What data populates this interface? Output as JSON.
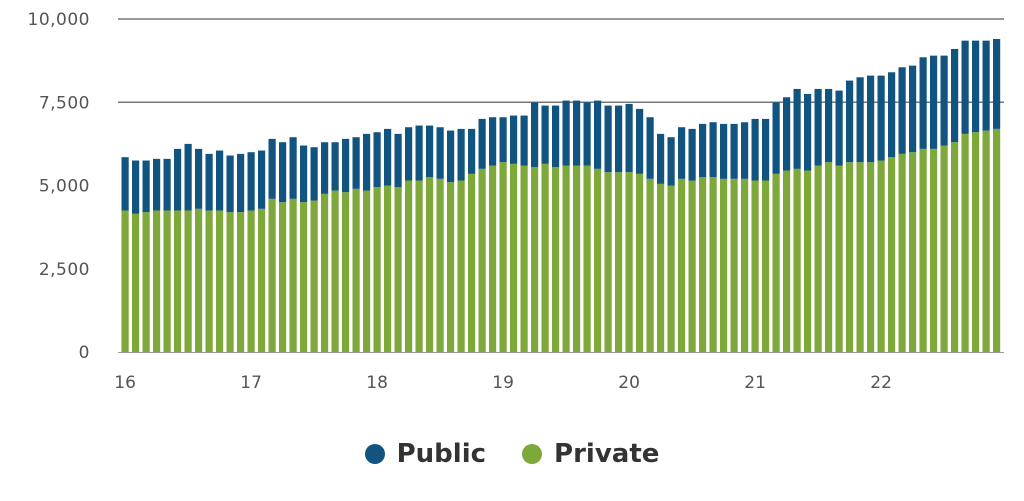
{
  "chart_data": {
    "type": "bar",
    "stacked": true,
    "title": "",
    "xlabel": "",
    "ylabel": "",
    "ylim": [
      0,
      10000
    ],
    "y_ticks": [
      "0",
      "2,500",
      "5,000",
      "7,500",
      "10,000"
    ],
    "y_tick_values": [
      0,
      2500,
      5000,
      7500,
      10000
    ],
    "x_tick_labels": [
      "16",
      "17",
      "18",
      "19",
      "20",
      "21",
      "22"
    ],
    "x_tick_positions": [
      0,
      12,
      24,
      36,
      48,
      60,
      72
    ],
    "grid": "horizontal at 7,500 and 10,000",
    "legend_position": "bottom-center",
    "categories_note": "monthly bars from Jan 2016 through Dec 2022",
    "series": [
      {
        "name": "Private",
        "color": "#7ea83a",
        "values": [
          4250,
          4150,
          4200,
          4250,
          4250,
          4250,
          4250,
          4300,
          4250,
          4250,
          4200,
          4200,
          4250,
          4300,
          4600,
          4500,
          4600,
          4500,
          4550,
          4750,
          4850,
          4800,
          4900,
          4850,
          4950,
          5000,
          4950,
          5150,
          5150,
          5250,
          5200,
          5100,
          5150,
          5350,
          5500,
          5600,
          5700,
          5650,
          5600,
          5550,
          5650,
          5550,
          5600,
          5600,
          5600,
          5500,
          5400,
          5400,
          5400,
          5350,
          5200,
          5050,
          5000,
          5200,
          5150,
          5250,
          5250,
          5200,
          5200,
          5200,
          5150,
          5150,
          5350,
          5450,
          5500,
          5450,
          5600,
          5700,
          5600,
          5700,
          5700,
          5700,
          5750,
          5850,
          5950,
          6000,
          6100,
          6100,
          6200,
          6300,
          6550,
          6600,
          6650,
          6700
        ]
      },
      {
        "name": "Public",
        "color": "#115480",
        "values": [
          1600,
          1600,
          1550,
          1550,
          1550,
          1850,
          2000,
          1800,
          1700,
          1800,
          1700,
          1750,
          1750,
          1750,
          1800,
          1800,
          1850,
          1700,
          1600,
          1550,
          1450,
          1600,
          1550,
          1700,
          1650,
          1700,
          1600,
          1600,
          1650,
          1550,
          1550,
          1550,
          1550,
          1350,
          1500,
          1450,
          1350,
          1450,
          1500,
          1950,
          1750,
          1850,
          1950,
          1950,
          1900,
          2050,
          2000,
          2000,
          2050,
          1950,
          1850,
          1500,
          1450,
          1550,
          1550,
          1600,
          1650,
          1650,
          1650,
          1700,
          1850,
          1850,
          2150,
          2200,
          2400,
          2300,
          2300,
          2200,
          2250,
          2450,
          2550,
          2600,
          2550,
          2550,
          2600,
          2600,
          2750,
          2800,
          2700,
          2800,
          2800,
          2750,
          2700,
          2700
        ]
      }
    ]
  }
}
